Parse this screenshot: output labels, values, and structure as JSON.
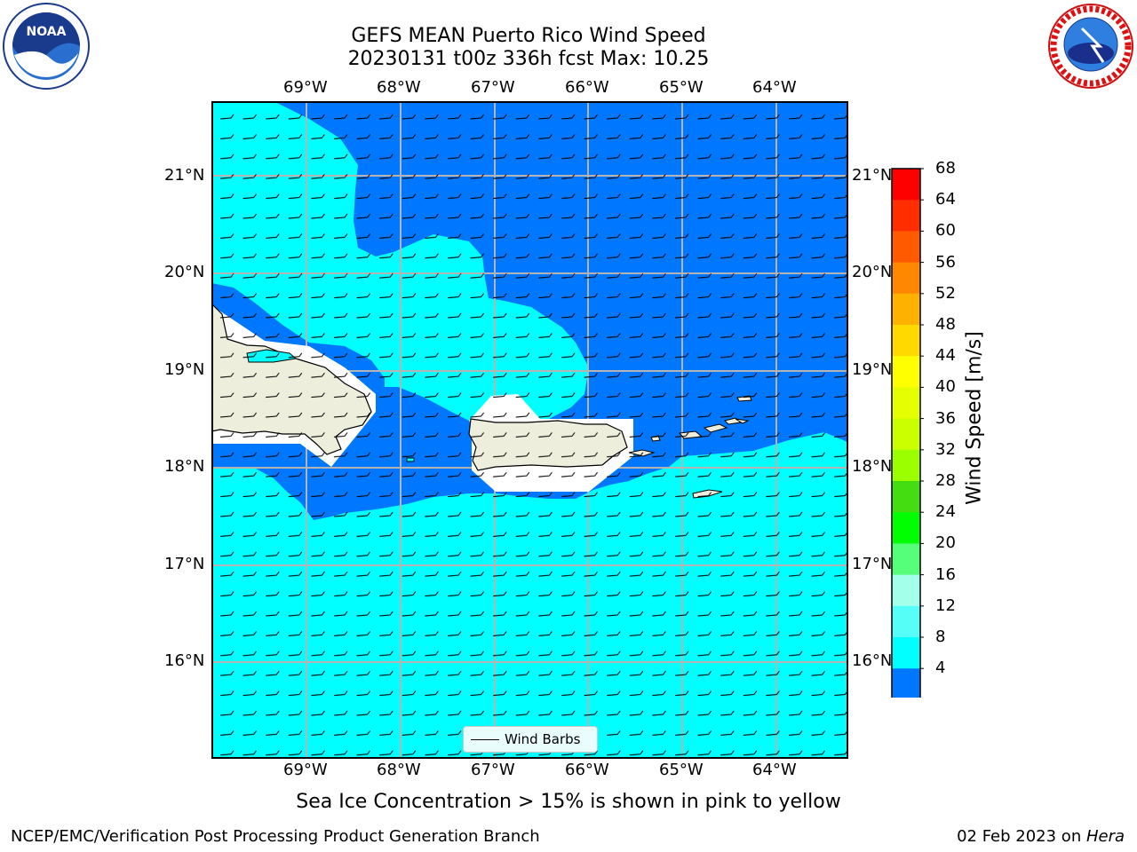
{
  "title": {
    "line1": "GEFS MEAN Puerto Rico Wind Speed",
    "line2": "20230131 t00z 336h fcst   Max: 10.25"
  },
  "lon_labels": [
    "69°W",
    "68°W",
    "67°W",
    "66°W",
    "65°W",
    "64°W"
  ],
  "lat_labels": [
    "21°N",
    "20°N",
    "19°N",
    "18°N",
    "17°N",
    "16°N"
  ],
  "colorbar": {
    "label": "Wind Speed [m/s]",
    "ticks": [
      "68",
      "64",
      "60",
      "56",
      "52",
      "48",
      "44",
      "40",
      "36",
      "32",
      "28",
      "24",
      "20",
      "16",
      "12",
      "8",
      "4"
    ],
    "colors": [
      "#ff0000",
      "#ff2d00",
      "#ff5a00",
      "#ff8800",
      "#ffb100",
      "#ffd900",
      "#ffff00",
      "#e6ff00",
      "#cbff00",
      "#9bff00",
      "#44dd11",
      "#00ff00",
      "#55ff7a",
      "#a3ffe9",
      "#55fff7",
      "#00ffff",
      "#0077ff"
    ],
    "min_color": "#0000ee"
  },
  "legend": {
    "label": "Wind Barbs"
  },
  "subtitle": "Sea Ice Concentration > 15% is shown in pink to yellow",
  "footer": {
    "left": "NCEP/EMC/Verification Post Processing Product Generation Branch",
    "date": "02 Feb 2023 on ",
    "host": "Hera"
  },
  "colors": {
    "wind_4_8": "#0077ff",
    "wind_8_12": "#00ffff",
    "land": "#eeeedc",
    "grid": "#b4b4b4"
  },
  "logos": [
    "noara-logo",
    "nws-logo"
  ]
}
